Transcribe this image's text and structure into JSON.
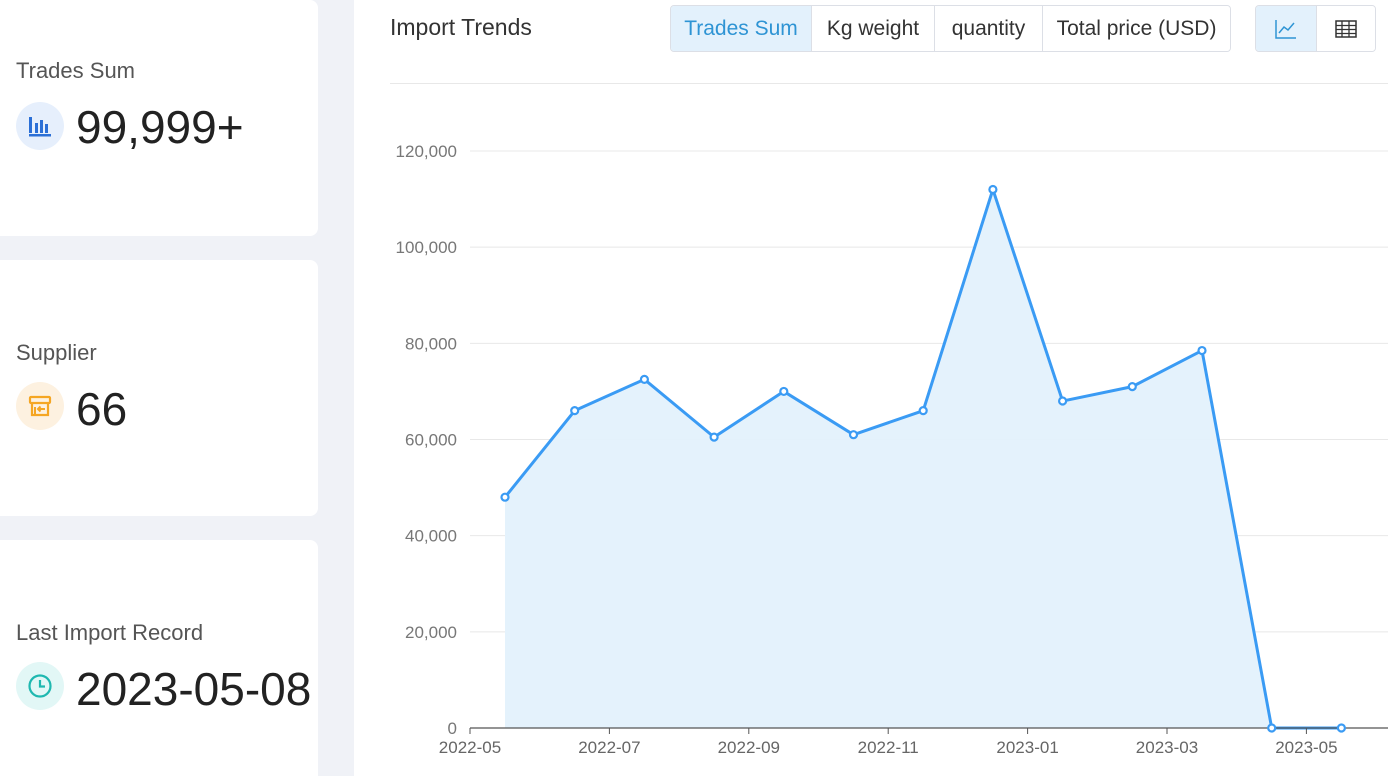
{
  "stats": {
    "trades": {
      "label": "Trades Sum",
      "value": "99,999+",
      "icon": "bar-chart-icon",
      "icon_color": "#2b6fd6",
      "icon_bg": "#e6effc"
    },
    "supplier": {
      "label": "Supplier",
      "value": "66",
      "icon": "store-icon",
      "icon_color": "#f5a623",
      "icon_bg": "#fdf1e0"
    },
    "last_record": {
      "label": "Last Import Record",
      "value": "2023-05-08",
      "icon": "clock-icon",
      "icon_color": "#1fb8b0",
      "icon_bg": "#e2f7f6"
    }
  },
  "panel": {
    "title": "Import Trends",
    "tabs": [
      "Trades Sum",
      "Kg weight",
      "quantity",
      "Total price (USD)"
    ],
    "active_tab": "Trades Sum",
    "view_buttons": [
      "line-chart-icon",
      "table-icon"
    ],
    "active_view": "line-chart-icon"
  },
  "colors": {
    "accent": "#2e94d4",
    "line": "#3a9bf4",
    "area": "#e3f1fc"
  },
  "chart_data": {
    "type": "area",
    "title": "",
    "xlabel": "",
    "ylabel": "",
    "x": [
      "2022-05",
      "2022-06",
      "2022-07",
      "2022-08",
      "2022-09",
      "2022-10",
      "2022-11",
      "2022-12",
      "2023-01",
      "2023-02",
      "2023-03",
      "2023-04",
      "2023-05"
    ],
    "x_tick_labels": [
      "2022-05",
      "2022-07",
      "2022-09",
      "2022-11",
      "2023-01",
      "2023-03",
      "2023-05"
    ],
    "series": [
      {
        "values": [
          48000,
          66000,
          72500,
          60500,
          70000,
          61000,
          66000,
          112000,
          68000,
          71000,
          78500,
          0,
          0
        ]
      }
    ],
    "y_ticks": [
      0,
      20000,
      40000,
      60000,
      80000,
      100000,
      120000
    ],
    "y_tick_labels": [
      "0",
      "20,000",
      "40,000",
      "60,000",
      "80,000",
      "100,000",
      "120,000"
    ],
    "ylim": [
      0,
      120000
    ],
    "grid": true,
    "legend": "none"
  }
}
